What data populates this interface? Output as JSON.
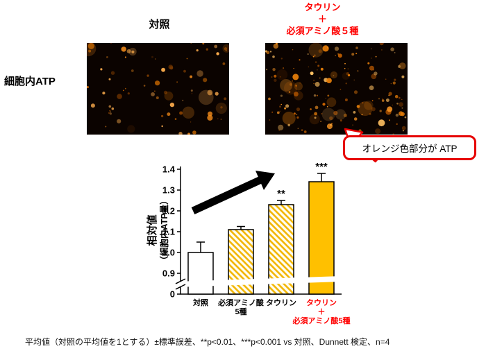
{
  "figure": {
    "control_label": "対照",
    "treated_label_lines": [
      "タウリン",
      "＋",
      "必須アミノ酸５種"
    ],
    "left_label": "細胞内ATP",
    "callout_text": "オレンジ色部分が ATP",
    "footnote": "平均値（対照の平均値を1とする）±標準誤差、**p<0.01、***p<0.001 vs 対照、Dunnett 検定、n=4"
  },
  "colors": {
    "red_accent": "#FF0000",
    "callout_border": "#E60000",
    "bar_orange": "#FFC000",
    "hatch_stripe": "#F2B500",
    "hatch_bg": "#FFFDF2"
  },
  "chart_data": {
    "type": "bar",
    "categories": [
      "対照",
      "必須アミノ酸5種",
      "タウリン",
      "タウリン＋必須アミノ酸5種"
    ],
    "category_lines": [
      [
        "対照"
      ],
      [
        "必須アミノ酸",
        "5種"
      ],
      [
        "タウリン"
      ],
      [
        "タウリン",
        "＋",
        "必須アミノ酸5種"
      ]
    ],
    "category_colors": [
      "#000000",
      "#000000",
      "#000000",
      "#FF0000"
    ],
    "values": [
      1.0,
      1.11,
      1.23,
      1.34
    ],
    "errors": [
      0.05,
      0.015,
      0.02,
      0.04
    ],
    "significance": [
      "",
      "",
      "**",
      "***"
    ],
    "bar_styles": [
      "white",
      "hatch",
      "hatch",
      "solid"
    ],
    "ylabel_lines": [
      "相対値",
      "（細胞内ATP量）"
    ],
    "yticks": [
      0,
      0.9,
      1.0,
      1.1,
      1.2,
      1.3,
      1.4
    ],
    "ylim_display": [
      0.9,
      1.4
    ],
    "axis_break": true,
    "grid": false,
    "legend": "none"
  }
}
